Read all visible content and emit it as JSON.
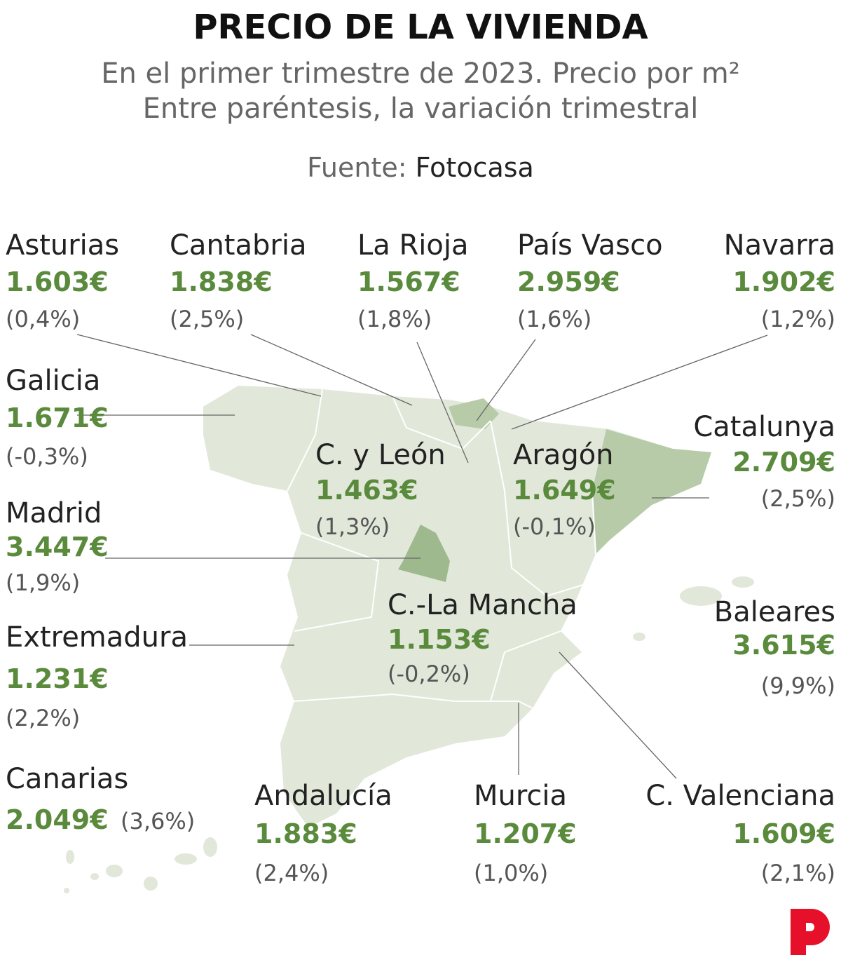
{
  "header": {
    "title": "PRECIO DE LA VIVIENDA",
    "subtitle": [
      "En el primer trimestre de 2023. Precio por m²",
      "Entre paréntesis, la variación trimestral"
    ],
    "source": {
      "label": "Fuente:",
      "name": "Fotocasa"
    }
  },
  "regions": [
    {
      "name": "Asturias",
      "price": "1.603€",
      "change": "(0,4%)"
    },
    {
      "name": "Cantabria",
      "price": "1.838€",
      "change": "(2,5%)"
    },
    {
      "name": "La Rioja",
      "price": "1.567€",
      "change": "(1,8%)"
    },
    {
      "name": "País Vasco",
      "price": "2.959€",
      "change": "(1,6%)"
    },
    {
      "name": "Navarra",
      "price": "1.902€",
      "change": "(1,2%)"
    },
    {
      "name": "Galicia",
      "price": "1.671€",
      "change": "(-0,3%)"
    },
    {
      "name": "C. y León",
      "price": "1.463€",
      "change": "(1,3%)"
    },
    {
      "name": "Aragón",
      "price": "1.649€",
      "change": "(-0,1%)"
    },
    {
      "name": "Catalunya",
      "price": "2.709€",
      "change": "(2,5%)"
    },
    {
      "name": "Madrid",
      "price": "3.447€",
      "change": "(1,9%)"
    },
    {
      "name": "C.-La Mancha",
      "price": "1.153€",
      "change": "(-0,2%)"
    },
    {
      "name": "Baleares",
      "price": "3.615€",
      "change": "(9,9%)"
    },
    {
      "name": "Extremadura",
      "price": "1.231€",
      "change": "(2,2%)"
    },
    {
      "name": "Canarias",
      "price": "2.049€",
      "change": "(3,6%)"
    },
    {
      "name": "Andalucía",
      "price": "1.883€",
      "change": "(2,4%)"
    },
    {
      "name": "Murcia",
      "price": "1.207€",
      "change": "(1,0%)"
    },
    {
      "name": "C. Valenciana",
      "price": "1.609€",
      "change": "(2,1%)"
    }
  ]
}
